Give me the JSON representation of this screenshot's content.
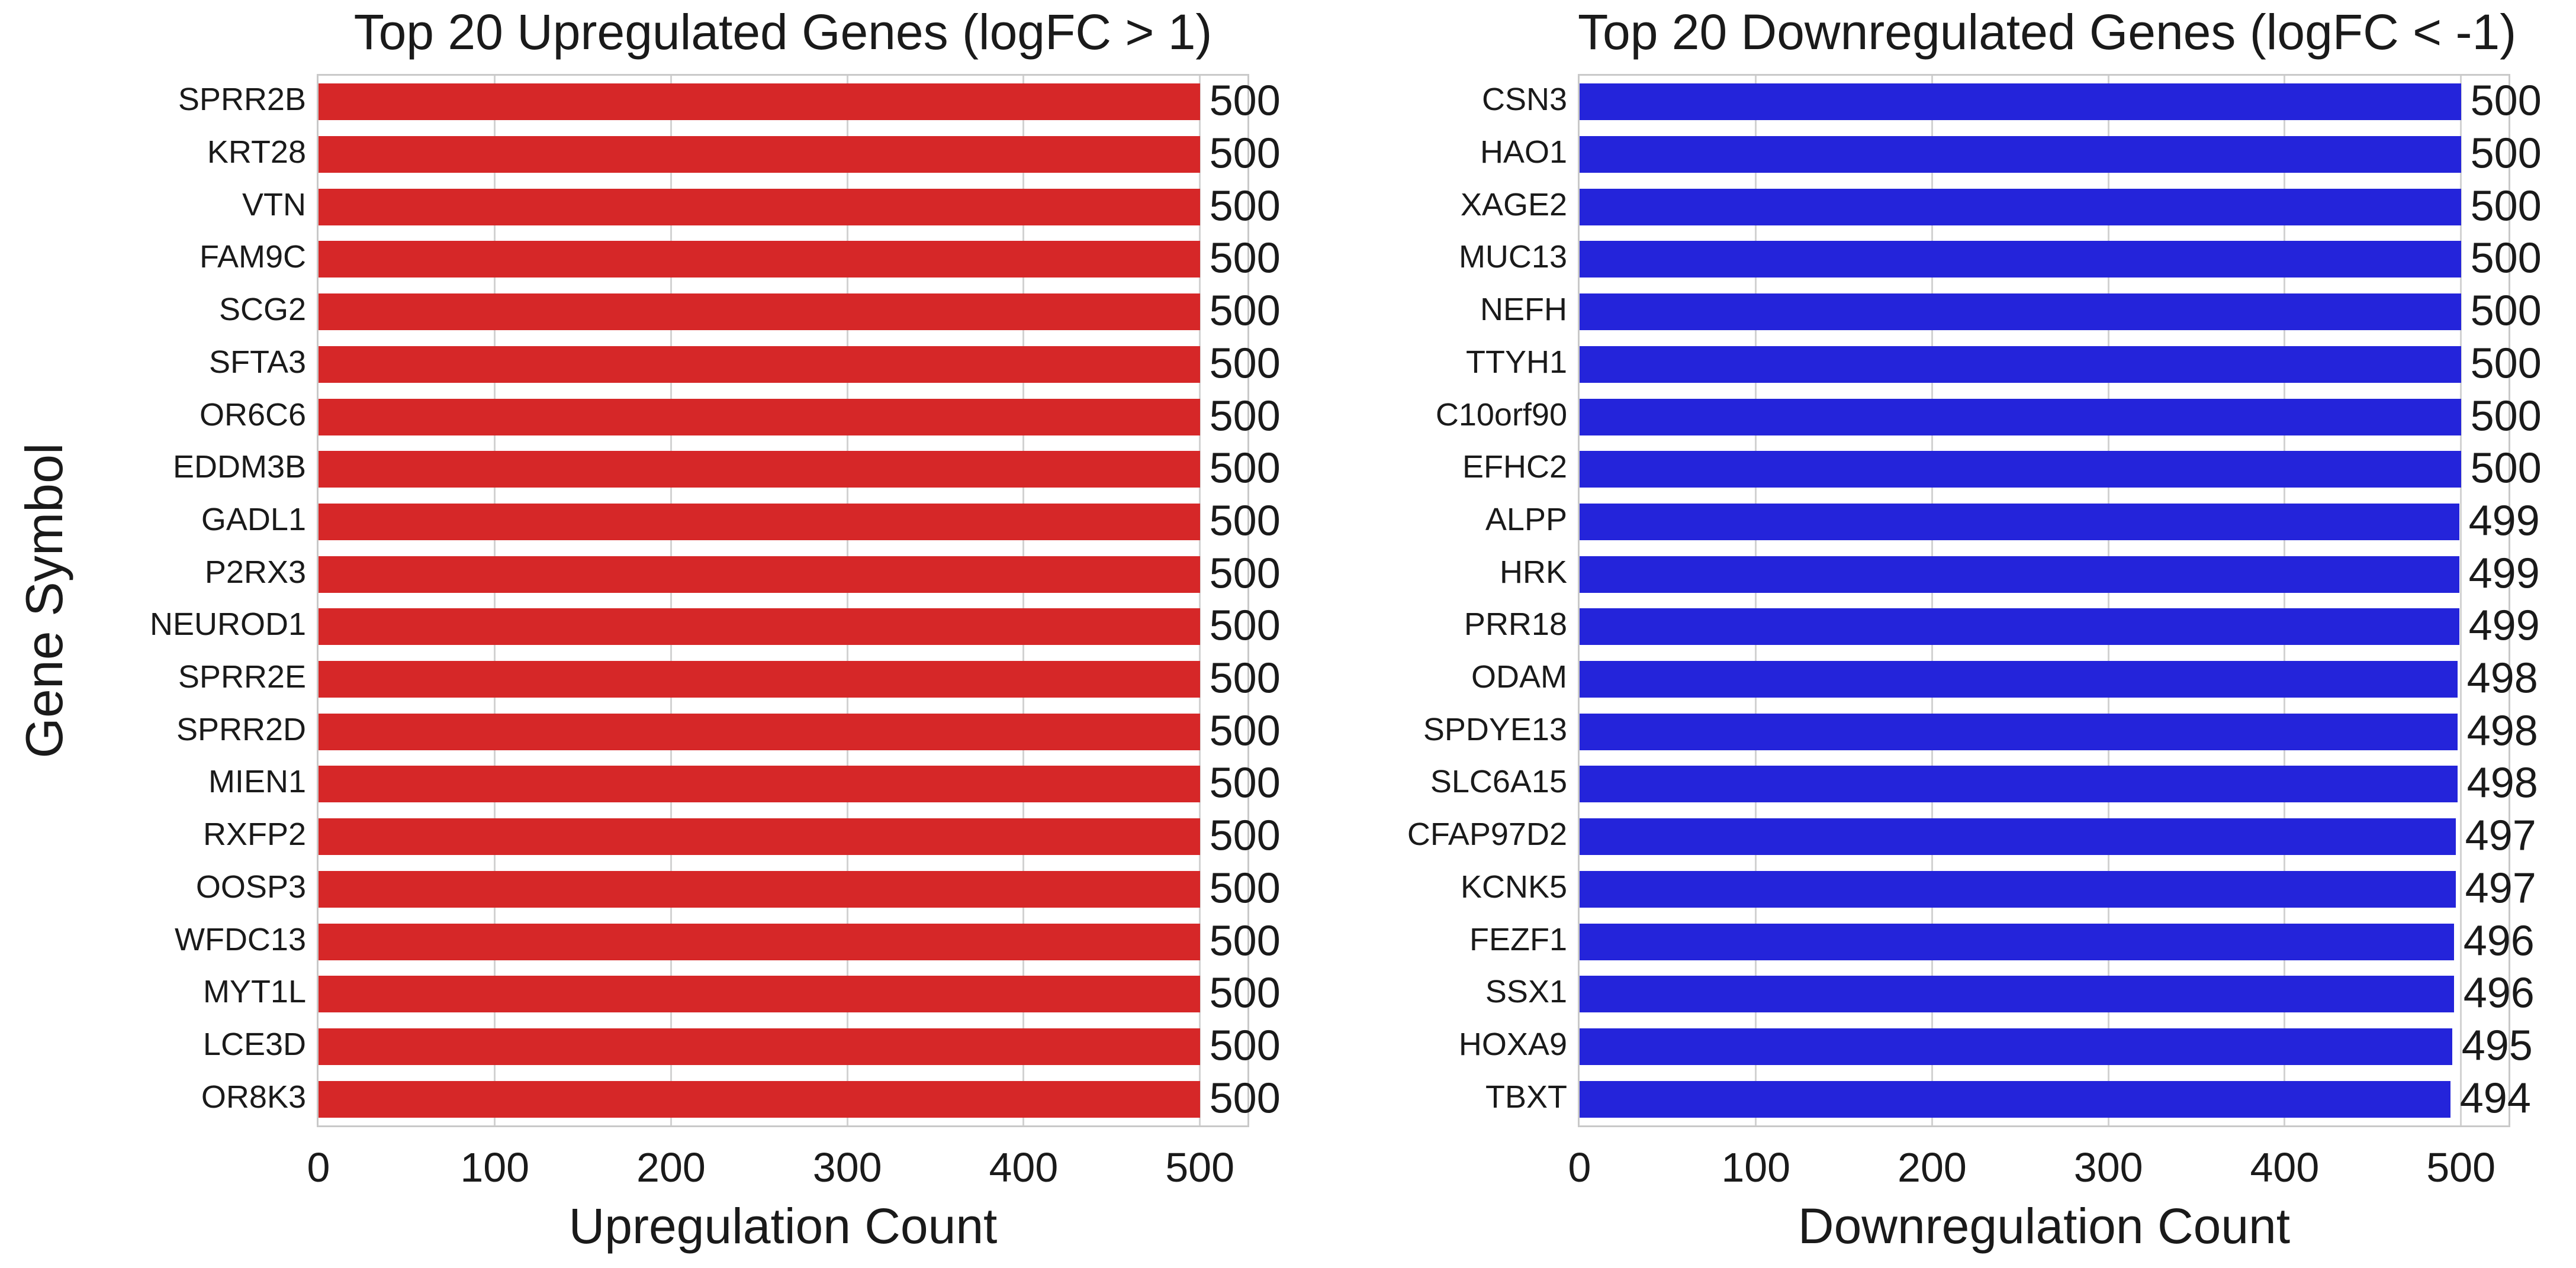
{
  "style": {
    "background_color": "#ffffff",
    "text_color": "#1a1a1a",
    "grid_color": "#d2d2d2",
    "spine_color": "#c9c9c9"
  },
  "chart_data": [
    {
      "type": "bar",
      "orientation": "horizontal",
      "title": "Top 20 Upregulated Genes (logFC > 1)",
      "xlabel": "Upregulation Count",
      "ylabel": "Gene Symbol",
      "legend": "none",
      "grid": true,
      "xlim": [
        0,
        527
      ],
      "xticks": [
        0,
        100,
        200,
        300,
        400,
        500
      ],
      "bar_color": "#d62728",
      "categories": [
        "SPRR2B",
        "KRT28",
        "VTN",
        "FAM9C",
        "SCG2",
        "SFTA3",
        "OR6C6",
        "EDDM3B",
        "GADL1",
        "P2RX3",
        "NEUROD1",
        "SPRR2E",
        "SPRR2D",
        "MIEN1",
        "RXFP2",
        "OOSP3",
        "WFDC13",
        "MYT1L",
        "LCE3D",
        "OR8K3"
      ],
      "values": [
        500,
        500,
        500,
        500,
        500,
        500,
        500,
        500,
        500,
        500,
        500,
        500,
        500,
        500,
        500,
        500,
        500,
        500,
        500,
        500
      ]
    },
    {
      "type": "bar",
      "orientation": "horizontal",
      "title": "Top 20 Downregulated Genes (logFC < -1)",
      "xlabel": "Downregulation Count",
      "ylabel": "",
      "legend": "none",
      "grid": true,
      "xlim": [
        0,
        527
      ],
      "xticks": [
        0,
        100,
        200,
        300,
        400,
        500
      ],
      "bar_color": "#2424da",
      "categories": [
        "CSN3",
        "HAO1",
        "XAGE2",
        "MUC13",
        "NEFH",
        "TTYH1",
        "C10orf90",
        "EFHC2",
        "ALPP",
        "HRK",
        "PRR18",
        "ODAM",
        "SPDYE13",
        "SLC6A15",
        "CFAP97D2",
        "KCNK5",
        "FEZF1",
        "SSX1",
        "HOXA9",
        "TBXT"
      ],
      "values": [
        500,
        500,
        500,
        500,
        500,
        500,
        500,
        500,
        499,
        499,
        499,
        498,
        498,
        498,
        497,
        497,
        496,
        496,
        495,
        494
      ]
    }
  ]
}
